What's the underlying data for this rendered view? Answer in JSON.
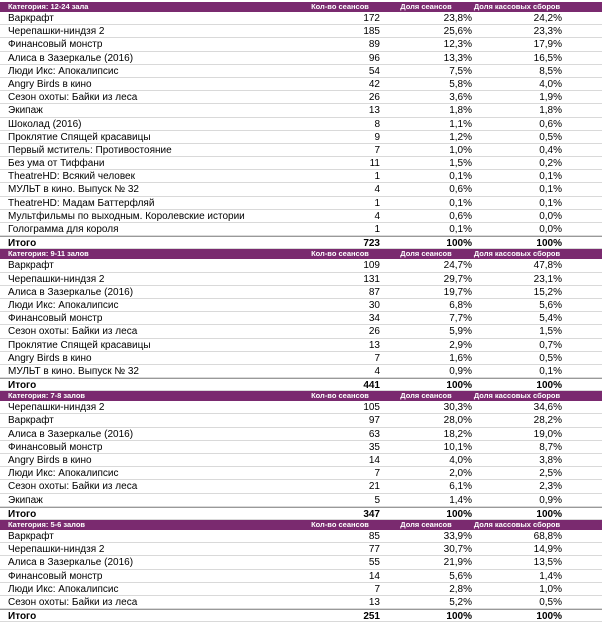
{
  "sections": [
    {
      "columns": [
        "Категория: 12-24 зала",
        "Кол-во сеансов",
        "Доля сеансов",
        "Доля кассовых сборов"
      ],
      "rows": [
        [
          "Варкрафт",
          "172",
          "23,8%",
          "24,2%"
        ],
        [
          "Черепашки-ниндзя 2",
          "185",
          "25,6%",
          "23,3%"
        ],
        [
          "Финансовый монстр",
          "89",
          "12,3%",
          "17,9%"
        ],
        [
          "Алиса в Зазеркалье (2016)",
          "96",
          "13,3%",
          "16,5%"
        ],
        [
          "Люди Икс: Апокалипсис",
          "54",
          "7,5%",
          "8,5%"
        ],
        [
          "Angry Birds в кино",
          "42",
          "5,8%",
          "4,0%"
        ],
        [
          "Сезон охоты: Байки из леса",
          "26",
          "3,6%",
          "1,9%"
        ],
        [
          "Экипаж",
          "13",
          "1,8%",
          "1,8%"
        ],
        [
          "Шоколад (2016)",
          "8",
          "1,1%",
          "0,6%"
        ],
        [
          "Проклятие Спящей красавицы",
          "9",
          "1,2%",
          "0,5%"
        ],
        [
          "Первый мститель: Противостояние",
          "7",
          "1,0%",
          "0,4%"
        ],
        [
          "Без ума от Тиффани",
          "11",
          "1,5%",
          "0,2%"
        ],
        [
          "TheatreHD: Всякий человек",
          "1",
          "0,1%",
          "0,1%"
        ],
        [
          "МУЛЬТ в кино. Выпуск № 32",
          "4",
          "0,6%",
          "0,1%"
        ],
        [
          "TheatreHD: Мадам Баттерфляй",
          "1",
          "0,1%",
          "0,1%"
        ],
        [
          "Мультфильмы по выходным. Королевские истории",
          "4",
          "0,6%",
          "0,0%"
        ],
        [
          "Голограмма для короля",
          "1",
          "0,1%",
          "0,0%"
        ]
      ],
      "total": [
        "Итого",
        "723",
        "100%",
        "100%"
      ]
    },
    {
      "columns": [
        "Категория: 9-11 залов",
        "Кол-во сеансов",
        "Доля сеансов",
        "Доля кассовых сборов"
      ],
      "rows": [
        [
          "Варкрафт",
          "109",
          "24,7%",
          "47,8%"
        ],
        [
          "Черепашки-ниндзя 2",
          "131",
          "29,7%",
          "23,1%"
        ],
        [
          "Алиса в Зазеркалье (2016)",
          "87",
          "19,7%",
          "15,2%"
        ],
        [
          "Люди Икс: Апокалипсис",
          "30",
          "6,8%",
          "5,6%"
        ],
        [
          "Финансовый монстр",
          "34",
          "7,7%",
          "5,4%"
        ],
        [
          "Сезон охоты: Байки из леса",
          "26",
          "5,9%",
          "1,5%"
        ],
        [
          "Проклятие Спящей красавицы",
          "13",
          "2,9%",
          "0,7%"
        ],
        [
          "Angry Birds в кино",
          "7",
          "1,6%",
          "0,5%"
        ],
        [
          "МУЛЬТ в кино. Выпуск № 32",
          "4",
          "0,9%",
          "0,1%"
        ]
      ],
      "total": [
        "Итого",
        "441",
        "100%",
        "100%"
      ]
    },
    {
      "columns": [
        "Категория: 7-8 залов",
        "Кол-во сеансов",
        "Доля сеансов",
        "Доля кассовых сборов"
      ],
      "rows": [
        [
          "Черепашки-ниндзя 2",
          "105",
          "30,3%",
          "34,6%"
        ],
        [
          "Варкрафт",
          "97",
          "28,0%",
          "28,2%"
        ],
        [
          "Алиса в Зазеркалье (2016)",
          "63",
          "18,2%",
          "19,0%"
        ],
        [
          "Финансовый монстр",
          "35",
          "10,1%",
          "8,7%"
        ],
        [
          "Angry Birds в кино",
          "14",
          "4,0%",
          "3,8%"
        ],
        [
          "Люди Икс: Апокалипсис",
          "7",
          "2,0%",
          "2,5%"
        ],
        [
          "Сезон охоты: Байки из леса",
          "21",
          "6,1%",
          "2,3%"
        ],
        [
          "Экипаж",
          "5",
          "1,4%",
          "0,9%"
        ]
      ],
      "total": [
        "Итого",
        "347",
        "100%",
        "100%"
      ]
    },
    {
      "columns": [
        "Категория: 5-6 залов",
        "Кол-во сеансов",
        "Доля сеансов",
        "Доля кассовых сборов"
      ],
      "rows": [
        [
          "Варкрафт",
          "85",
          "33,9%",
          "68,8%"
        ],
        [
          "Черепашки-ниндзя 2",
          "77",
          "30,7%",
          "14,9%"
        ],
        [
          "Алиса в Зазеркалье (2016)",
          "55",
          "21,9%",
          "13,5%"
        ],
        [
          "Финансовый монстр",
          "14",
          "5,6%",
          "1,4%"
        ],
        [
          "Люди Икс: Апокалипсис",
          "7",
          "2,8%",
          "1,0%"
        ],
        [
          "Сезон охоты: Байки из леса",
          "13",
          "5,2%",
          "0,5%"
        ]
      ],
      "total": [
        "Итого",
        "251",
        "100%",
        "100%"
      ]
    }
  ]
}
